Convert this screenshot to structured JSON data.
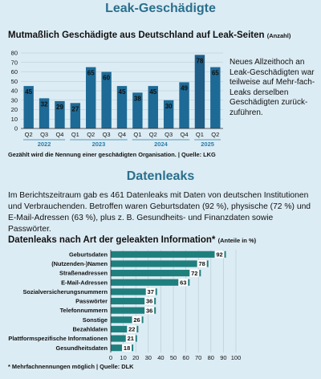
{
  "header": {
    "title": "Leak-Geschädigte"
  },
  "section1": {
    "subtitle": "Mutmaßlich Geschädigte aus Deutschland auf Leak-Seiten",
    "subtitle_unit": "(Anzahl)",
    "side_text": "Neues Allzeithoch an Leak-Geschädigten war teilweise auf Mehr-fach-Leaks derselben Geschädigten zurück-zuführen.",
    "note": "Gezählt wird die Nennung einer geschädigten Organisation. | Quelle: LKG"
  },
  "section2": {
    "title": "Datenleaks",
    "intro": "Im Berichtszeitraum gab es 461 Datenleaks mit Daten von deutschen Institutionen und Verbrauchenden. Betroffen waren Geburtsdaten (92 %), physische (72 %) und E-Mail-Adressen (63 %), plus z. B. Gesundheits- und Finanzdaten sowie Passwörter.",
    "subtitle": "Datenleaks nach Art der geleakten Information*",
    "subtitle_unit": "(Anteile in %)",
    "note": "* Mehrfachnennungen möglich | Quelle: DLK"
  },
  "colors": {
    "bar_dark": "#1e6a96",
    "bar_highlight": "#1f5e87",
    "bar_teal": "#1f7f7d",
    "title": "#2a6f8c",
    "grid": "#b7c8d1"
  },
  "chart_data": [
    {
      "type": "bar",
      "categories": [
        "Q2",
        "Q3",
        "Q4",
        "Q1",
        "Q2",
        "Q3",
        "Q4",
        "Q1",
        "Q2",
        "Q3",
        "Q4",
        "Q1",
        "Q2"
      ],
      "years": [
        {
          "label": "2022",
          "span": [
            0,
            2
          ]
        },
        {
          "label": "2023",
          "span": [
            3,
            6
          ]
        },
        {
          "label": "2024",
          "span": [
            7,
            10
          ]
        },
        {
          "label": "2025",
          "span": [
            11,
            12
          ]
        }
      ],
      "values": [
        45,
        32,
        29,
        27,
        65,
        60,
        45,
        38,
        45,
        30,
        49,
        78,
        65
      ],
      "highlight_index": 11,
      "yticks": [
        0,
        10,
        20,
        30,
        40,
        50,
        60,
        70,
        80
      ],
      "ylim": [
        0,
        80
      ],
      "grid": true
    },
    {
      "type": "bar",
      "orientation": "horizontal",
      "categories": [
        "Geburtsdaten",
        "(Nutzenden-)Namen",
        "Straßenadressen",
        "E-Mail-Adressen",
        "Sozialversicherungsnummern",
        "Passwörter",
        "Telefonnummern",
        "Sonstige",
        "Bezahldaten",
        "Plattformspezifische Informationen",
        "Gesundheitsdaten"
      ],
      "values": [
        92,
        78,
        72,
        63,
        37,
        36,
        36,
        26,
        22,
        21,
        18
      ],
      "xticks": [
        0,
        10,
        20,
        30,
        40,
        50,
        60,
        70,
        80,
        90,
        100
      ],
      "xlim": [
        0,
        100
      ],
      "grid": true
    }
  ]
}
